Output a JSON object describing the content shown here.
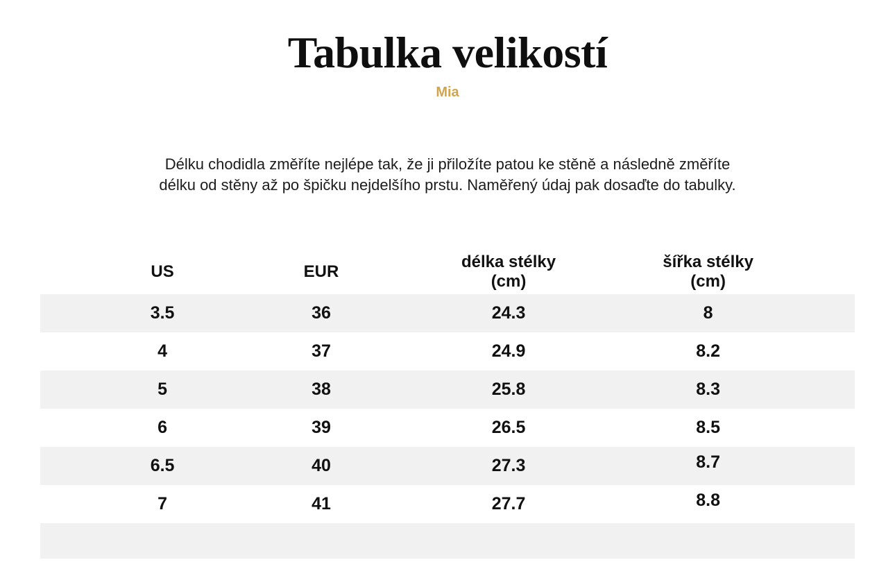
{
  "page": {
    "title": "Tabulka velikostí",
    "subtitle": "Mia",
    "description": {
      "line1": "Délku chodidla změříte nejlépe tak, že ji přiložíte patou ke stěně a následně změříte",
      "line2": "délku od stěny až po špičku nejdelšího prstu. Naměřený údaj pak dosaďte do tabulky."
    }
  },
  "colors": {
    "accent_gold": "#d2a44a",
    "row_stripe": "#f1f1f1",
    "text_primary": "#111111",
    "background": "#ffffff"
  },
  "size_table": {
    "headers": [
      {
        "label": "US",
        "unit": ""
      },
      {
        "label": "EUR",
        "unit": ""
      },
      {
        "label": "délka stélky",
        "unit": "(cm)"
      },
      {
        "label": "šířka stélky",
        "unit": "(cm)"
      }
    ],
    "rows": [
      [
        "3.5",
        "36",
        "24.3",
        "8"
      ],
      [
        "4",
        "37",
        "24.9",
        "8.2"
      ],
      [
        "5",
        "38",
        "25.8",
        "8.3"
      ],
      [
        "6",
        "39",
        "26.5",
        "8.5"
      ],
      [
        "6.5",
        "40",
        "27.3",
        "8.7"
      ],
      [
        "7",
        "41",
        "27.7",
        "8.8"
      ]
    ]
  }
}
